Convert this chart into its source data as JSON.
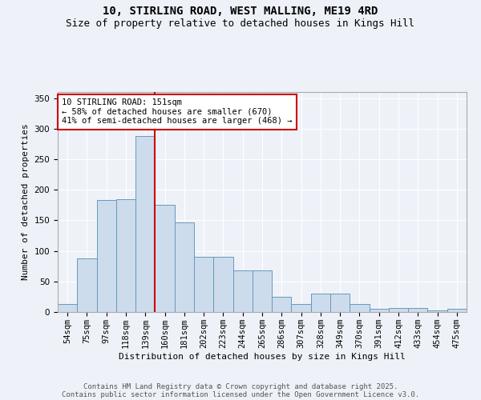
{
  "title_line1": "10, STIRLING ROAD, WEST MALLING, ME19 4RD",
  "title_line2": "Size of property relative to detached houses in Kings Hill",
  "xlabel": "Distribution of detached houses by size in Kings Hill",
  "ylabel": "Number of detached properties",
  "bar_color": "#ccdcec",
  "bar_edge_color": "#6699bb",
  "background_color": "#eef2f8",
  "grid_color": "#ffffff",
  "categories": [
    "54sqm",
    "75sqm",
    "97sqm",
    "118sqm",
    "139sqm",
    "160sqm",
    "181sqm",
    "202sqm",
    "223sqm",
    "244sqm",
    "265sqm",
    "286sqm",
    "307sqm",
    "328sqm",
    "349sqm",
    "370sqm",
    "391sqm",
    "412sqm",
    "433sqm",
    "454sqm",
    "475sqm"
  ],
  "values": [
    13,
    88,
    183,
    185,
    288,
    175,
    147,
    90,
    90,
    68,
    68,
    25,
    13,
    30,
    30,
    13,
    5,
    6,
    6,
    3,
    5
  ],
  "ylim": [
    0,
    360
  ],
  "yticks": [
    0,
    50,
    100,
    150,
    200,
    250,
    300,
    350
  ],
  "property_line_x": 4.5,
  "annotation_text": "10 STIRLING ROAD: 151sqm\n← 58% of detached houses are smaller (670)\n41% of semi-detached houses are larger (468) →",
  "annotation_box_color": "#ffffff",
  "annotation_box_edge": "#cc0000",
  "vline_color": "#cc0000",
  "footer_line1": "Contains HM Land Registry data © Crown copyright and database right 2025.",
  "footer_line2": "Contains public sector information licensed under the Open Government Licence v3.0.",
  "title_fontsize": 10,
  "subtitle_fontsize": 9,
  "label_fontsize": 8,
  "tick_fontsize": 7.5,
  "annotation_fontsize": 7.5,
  "footer_fontsize": 6.5
}
